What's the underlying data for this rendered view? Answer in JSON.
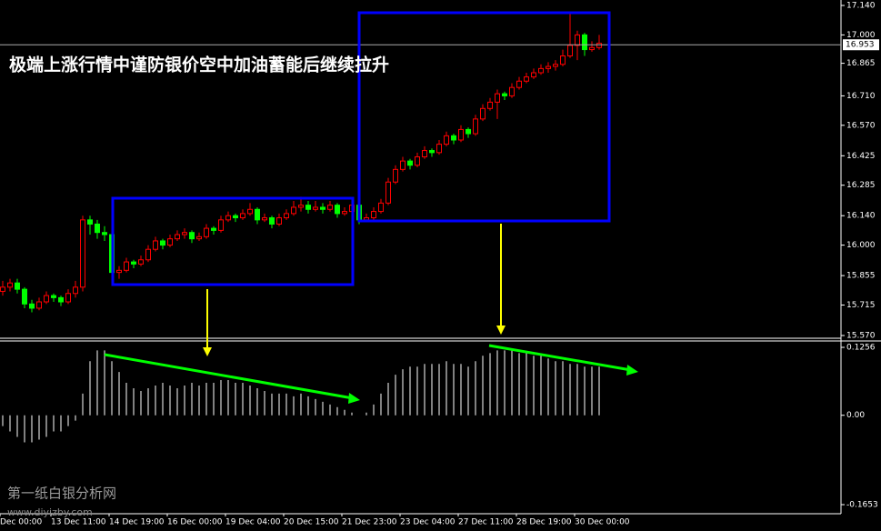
{
  "chart_data": [
    {
      "type": "candlestick",
      "title": "极端上涨行情中谨防银价空中加油蓄能后继续拉升",
      "categories": [
        "Dec 00:00",
        null,
        null,
        null,
        null,
        null,
        null,
        "13 Dec 11:00",
        null,
        null,
        null,
        null,
        null,
        null,
        null,
        "14 Dec 19:00",
        null,
        null,
        null,
        null,
        null,
        null,
        null,
        "16 Dec 00:00",
        null,
        null,
        null,
        null,
        null,
        null,
        null,
        "19 Dec 04:00",
        null,
        null,
        null,
        null,
        null,
        null,
        null,
        "20 Dec 15:00",
        null,
        null,
        null,
        null,
        null,
        null,
        null,
        "21 Dec 23:00",
        null,
        null,
        null,
        null,
        null,
        null,
        null,
        "23 Dec 04:00",
        null,
        null,
        null,
        null,
        null,
        null,
        null,
        "27 Dec 11:00",
        null,
        null,
        null,
        null,
        null,
        null,
        null,
        "28 Dec 19:00",
        null,
        null,
        null,
        null,
        null,
        null,
        null,
        "30 Dec 00:00",
        null,
        null,
        null
      ],
      "ohlc": [
        [
          15.78,
          15.83,
          15.76,
          15.8
        ],
        [
          15.8,
          15.84,
          15.78,
          15.82
        ],
        [
          15.82,
          15.84,
          15.77,
          15.79
        ],
        [
          15.79,
          15.8,
          15.7,
          15.72
        ],
        [
          15.72,
          15.74,
          15.68,
          15.7
        ],
        [
          15.7,
          15.75,
          15.69,
          15.73
        ],
        [
          15.73,
          15.78,
          15.72,
          15.76
        ],
        [
          15.76,
          15.77,
          15.73,
          15.75
        ],
        [
          15.75,
          15.76,
          15.71,
          15.73
        ],
        [
          15.73,
          15.79,
          15.72,
          15.77
        ],
        [
          15.77,
          15.83,
          15.75,
          15.8
        ],
        [
          15.8,
          16.14,
          15.78,
          16.12
        ],
        [
          16.12,
          16.14,
          16.05,
          16.1
        ],
        [
          16.1,
          16.12,
          16.03,
          16.06
        ],
        [
          16.06,
          16.09,
          16.02,
          16.05
        ],
        [
          16.05,
          16.06,
          15.85,
          15.87
        ],
        [
          15.87,
          15.9,
          15.84,
          15.88
        ],
        [
          15.88,
          15.94,
          15.87,
          15.92
        ],
        [
          15.92,
          15.93,
          15.89,
          15.91
        ],
        [
          15.91,
          15.95,
          15.9,
          15.93
        ],
        [
          15.93,
          16.0,
          15.92,
          15.98
        ],
        [
          15.98,
          16.04,
          15.97,
          16.02
        ],
        [
          16.02,
          16.03,
          15.98,
          16.0
        ],
        [
          16.0,
          16.05,
          15.99,
          16.03
        ],
        [
          16.03,
          16.07,
          16.02,
          16.05
        ],
        [
          16.05,
          16.08,
          16.03,
          16.06
        ],
        [
          16.06,
          16.07,
          16.01,
          16.03
        ],
        [
          16.03,
          16.06,
          16.02,
          16.04
        ],
        [
          16.04,
          16.1,
          16.03,
          16.08
        ],
        [
          16.08,
          16.09,
          16.05,
          16.07
        ],
        [
          16.07,
          16.14,
          16.06,
          16.12
        ],
        [
          16.12,
          16.16,
          16.11,
          16.14
        ],
        [
          16.14,
          16.15,
          16.11,
          16.13
        ],
        [
          16.13,
          16.17,
          16.12,
          16.15
        ],
        [
          16.15,
          16.2,
          16.14,
          16.17
        ],
        [
          16.17,
          16.18,
          16.1,
          16.12
        ],
        [
          16.12,
          16.15,
          16.11,
          16.13
        ],
        [
          16.13,
          16.14,
          16.08,
          16.1
        ],
        [
          16.1,
          16.15,
          16.09,
          16.13
        ],
        [
          16.13,
          16.17,
          16.12,
          16.15
        ],
        [
          16.15,
          16.21,
          16.14,
          16.18
        ],
        [
          16.18,
          16.23,
          16.16,
          16.19
        ],
        [
          16.19,
          16.21,
          16.15,
          16.17
        ],
        [
          16.17,
          16.21,
          16.16,
          16.18
        ],
        [
          16.18,
          16.2,
          16.15,
          16.17
        ],
        [
          16.17,
          16.21,
          16.16,
          16.19
        ],
        [
          16.19,
          16.2,
          16.13,
          16.15
        ],
        [
          16.15,
          16.18,
          16.14,
          16.16
        ],
        [
          16.16,
          16.21,
          16.15,
          16.19
        ],
        [
          16.19,
          16.2,
          16.1,
          16.12
        ],
        [
          16.12,
          16.15,
          16.11,
          16.13
        ],
        [
          16.13,
          16.18,
          16.12,
          16.16
        ],
        [
          16.16,
          16.22,
          16.15,
          16.2
        ],
        [
          16.2,
          16.32,
          16.19,
          16.3
        ],
        [
          16.3,
          16.38,
          16.29,
          16.36
        ],
        [
          16.36,
          16.42,
          16.35,
          16.4
        ],
        [
          16.4,
          16.41,
          16.36,
          16.38
        ],
        [
          16.38,
          16.44,
          16.37,
          16.42
        ],
        [
          16.42,
          16.47,
          16.41,
          16.45
        ],
        [
          16.45,
          16.46,
          16.42,
          16.44
        ],
        [
          16.44,
          16.5,
          16.43,
          16.48
        ],
        [
          16.48,
          16.54,
          16.47,
          16.52
        ],
        [
          16.52,
          16.53,
          16.48,
          16.5
        ],
        [
          16.5,
          16.57,
          16.49,
          16.55
        ],
        [
          16.55,
          16.56,
          16.51,
          16.53
        ],
        [
          16.53,
          16.62,
          16.52,
          16.6
        ],
        [
          16.6,
          16.67,
          16.59,
          16.65
        ],
        [
          16.65,
          16.7,
          16.64,
          16.68
        ],
        [
          16.68,
          16.74,
          16.6,
          16.72
        ],
        [
          16.72,
          16.73,
          16.69,
          16.71
        ],
        [
          16.71,
          16.77,
          16.7,
          16.75
        ],
        [
          16.75,
          16.8,
          16.74,
          16.78
        ],
        [
          16.78,
          16.82,
          16.77,
          16.8
        ],
        [
          16.8,
          16.84,
          16.79,
          16.82
        ],
        [
          16.82,
          16.86,
          16.81,
          16.84
        ],
        [
          16.84,
          16.87,
          16.82,
          16.85
        ],
        [
          16.85,
          16.88,
          16.83,
          16.86
        ],
        [
          16.86,
          16.93,
          16.85,
          16.9
        ],
        [
          16.9,
          17.1,
          16.89,
          16.95
        ],
        [
          16.95,
          17.02,
          16.88,
          17.0
        ],
        [
          17.0,
          17.01,
          16.9,
          16.93
        ],
        [
          16.93,
          16.97,
          16.92,
          16.94
        ],
        [
          16.94,
          17.0,
          16.93,
          16.96
        ]
      ],
      "up_color": "#ff0000",
      "down_color": "#00ff00",
      "ylim": [
        15.557,
        17.166
      ],
      "yticks": [
        {
          "value": 17.14,
          "label": "17.140"
        },
        {
          "value": 17.0,
          "label": "17.000"
        },
        16.865,
        {
          "value": 16.71,
          "label": "16.710"
        },
        {
          "value": 16.57,
          "label": "16.570"
        },
        16.425,
        16.285,
        {
          "value": 16.14,
          "label": "16.140"
        },
        {
          "value": 16.0,
          "label": "16.000"
        },
        15.855,
        15.715,
        {
          "value": 15.57,
          "label": "15.570"
        }
      ],
      "current_price": 16.953
    },
    {
      "type": "histogram",
      "color": "#ffffff",
      "values": [
        -0.02,
        -0.03,
        -0.04,
        -0.05,
        -0.05,
        -0.045,
        -0.04,
        -0.03,
        -0.03,
        -0.02,
        -0.01,
        0.04,
        0.1,
        0.12,
        0.12,
        0.1,
        0.08,
        0.06,
        0.05,
        0.045,
        0.05,
        0.055,
        0.06,
        0.055,
        0.05,
        0.055,
        0.06,
        0.055,
        0.06,
        0.06,
        0.065,
        0.065,
        0.06,
        0.06,
        0.055,
        0.05,
        0.045,
        0.04,
        0.04,
        0.04,
        0.035,
        0.04,
        0.035,
        0.03,
        0.025,
        0.02,
        0.015,
        0.01,
        0.005,
        0.0,
        0.005,
        0.02,
        0.04,
        0.06,
        0.075,
        0.085,
        0.09,
        0.09,
        0.095,
        0.095,
        0.095,
        0.1,
        0.095,
        0.095,
        0.09,
        0.1,
        0.11,
        0.115,
        0.12,
        0.12,
        0.12,
        0.115,
        0.115,
        0.11,
        0.11,
        0.105,
        0.1,
        0.1,
        0.095,
        0.095,
        0.09,
        0.09,
        0.09
      ],
      "ylim": [
        -0.1821,
        0.1374
      ],
      "yticks": [
        0.1256,
        {
          "value": 0,
          "label": "0.00"
        },
        -0.1653
      ]
    }
  ],
  "watermark": {
    "name": "第一纸白银分析网",
    "url": "www.diyizby.com"
  }
}
